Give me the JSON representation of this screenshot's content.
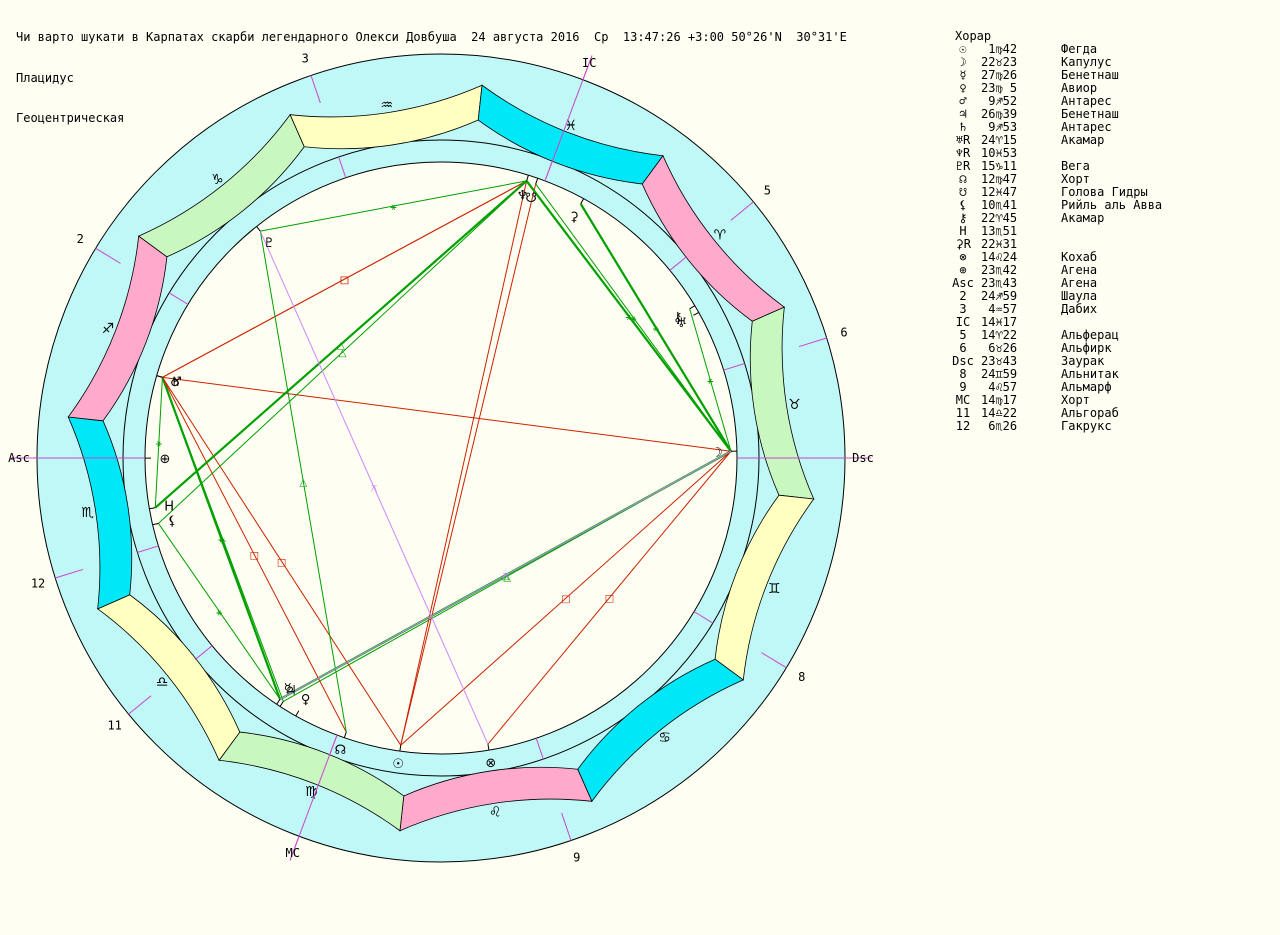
{
  "header": {
    "line1": "Чи варто шукати в Карпатах скарби легендарного Олекси Довбуша  24 августа 2016  Ср  13:47:26 +3:00 50°26'N  30°31'E",
    "line2": "Плацидус",
    "line3": "Геоцентрическая"
  },
  "table": {
    "title": "Хорар",
    "rows": [
      {
        "sym": "☉",
        "pos": " 1♍42",
        "star": "Фегда"
      },
      {
        "sym": "☽",
        "pos": "22♉23",
        "star": "Капулус"
      },
      {
        "sym": "☿",
        "pos": "27♍26",
        "star": "Бенетнаш"
      },
      {
        "sym": "♀",
        "pos": "23♍ 5",
        "star": "Авиор"
      },
      {
        "sym": "♂",
        "pos": " 9♐52",
        "star": "Антарес"
      },
      {
        "sym": "♃",
        "pos": "26♍39",
        "star": "Бенетнаш"
      },
      {
        "sym": "♄",
        "pos": " 9♐53",
        "star": "Антарес"
      },
      {
        "sym": "♅R",
        "pos": "24♈15",
        "star": "Акамар"
      },
      {
        "sym": "♆R",
        "pos": "10♓53",
        "star": ""
      },
      {
        "sym": "♇R",
        "pos": "15♑11",
        "star": "Вега"
      },
      {
        "sym": "☊",
        "pos": "12♍47",
        "star": "Хорт"
      },
      {
        "sym": "☋",
        "pos": "12♓47",
        "star": "Голова Гидры"
      },
      {
        "sym": "⚸",
        "pos": "10♏41",
        "star": "Рийль аль Авва"
      },
      {
        "sym": "⚷",
        "pos": "22♈45",
        "star": "Акамар"
      },
      {
        "sym": "H",
        "pos": "13♏51",
        "star": ""
      },
      {
        "sym": "⚳R",
        "pos": "22♓31",
        "star": ""
      },
      {
        "sym": "⊗",
        "pos": "14♌24",
        "star": "Кохаб"
      },
      {
        "sym": "⊕",
        "pos": "23♏42",
        "star": "Агена"
      },
      {
        "sym": "Asc",
        "pos": "23♏43",
        "star": "Агена"
      },
      {
        "sym": "2",
        "pos": "24♐59",
        "star": "Шаула"
      },
      {
        "sym": "3",
        "pos": " 4♒57",
        "star": "Дабих"
      },
      {
        "sym": "IC",
        "pos": "14♓17",
        "star": ""
      },
      {
        "sym": "5",
        "pos": "14♈22",
        "star": "Альферац"
      },
      {
        "sym": "6",
        "pos": " 6♉26",
        "star": "Альфирк"
      },
      {
        "sym": "Dsc",
        "pos": "23♉43",
        "star": "Заурак"
      },
      {
        "sym": "8",
        "pos": "24♊59",
        "star": "Альнитак"
      },
      {
        "sym": "9",
        "pos": " 4♌57",
        "star": "Альмарф"
      },
      {
        "sym": "MC",
        "pos": "14♍17",
        "star": "Хорт"
      },
      {
        "sym": "11",
        "pos": "14♎22",
        "star": "Альгораб"
      },
      {
        "sym": "12",
        "pos": " 6♏26",
        "star": "Гакрукс"
      }
    ]
  },
  "chart": {
    "asc_deg": 233.717,
    "colors": {
      "element_fire": "#ffaacc",
      "element_earth": "#c8f8c0",
      "element_air": "#ffffc0",
      "element_water": "#00e8f8",
      "ring_fill": "#c0f8f8",
      "background": "#fefef3",
      "axis": "#cc44cc",
      "house_line": "#cc44cc",
      "aspect_green": "#00a000",
      "aspect_red": "#cc2200",
      "aspect_violet": "#cc88ff",
      "aspect_gray": "#9999cc"
    },
    "signs": [
      {
        "glyph": "♈",
        "element": "fire"
      },
      {
        "glyph": "♉",
        "element": "earth"
      },
      {
        "glyph": "♊",
        "element": "air"
      },
      {
        "glyph": "♋",
        "element": "water"
      },
      {
        "glyph": "♌",
        "element": "fire"
      },
      {
        "glyph": "♍",
        "element": "earth"
      },
      {
        "glyph": "♎",
        "element": "air"
      },
      {
        "glyph": "♏",
        "element": "water"
      },
      {
        "glyph": "♐",
        "element": "fire"
      },
      {
        "glyph": "♑",
        "element": "earth"
      },
      {
        "glyph": "♒",
        "element": "air"
      },
      {
        "glyph": "♓",
        "element": "water"
      }
    ],
    "houses": [
      {
        "label": "Asc",
        "lon": 233.717
      },
      {
        "label": "2",
        "lon": 264.983
      },
      {
        "label": "3",
        "lon": 304.95
      },
      {
        "label": "IC",
        "lon": 344.283
      },
      {
        "label": "5",
        "lon": 14.367
      },
      {
        "label": "6",
        "lon": 36.433
      },
      {
        "label": "Dsc",
        "lon": 53.717
      },
      {
        "label": "8",
        "lon": 84.983
      },
      {
        "label": "9",
        "lon": 124.95
      },
      {
        "label": "MC",
        "lon": 164.283
      },
      {
        "label": "11",
        "lon": 194.367
      },
      {
        "label": "12",
        "lon": 216.433
      }
    ],
    "planets": [
      {
        "id": "sun",
        "glyph": "☉",
        "lon": 151.7,
        "ring": "outer"
      },
      {
        "id": "moon",
        "glyph": "☽",
        "lon": 52.383,
        "ring": "inner"
      },
      {
        "id": "mercury",
        "glyph": "☿",
        "lon": 177.433,
        "ring": "inner"
      },
      {
        "id": "venus",
        "glyph": "♀",
        "lon": 173.083,
        "ring": "inner"
      },
      {
        "id": "mars",
        "glyph": "♂",
        "lon": 249.867,
        "ring": "inner"
      },
      {
        "id": "jupiter",
        "glyph": "♃",
        "lon": 176.65,
        "ring": "inner"
      },
      {
        "id": "saturn",
        "glyph": "♄",
        "lon": 249.883,
        "ring": "inner"
      },
      {
        "id": "uranus",
        "glyph": "♅",
        "lon": 24.25,
        "ring": "inner"
      },
      {
        "id": "neptune",
        "glyph": "♆",
        "lon": 340.883,
        "ring": "inner"
      },
      {
        "id": "pluto",
        "glyph": "♇",
        "lon": 285.183,
        "ring": "inner"
      },
      {
        "id": "north-node",
        "glyph": "☊",
        "lon": 162.783,
        "ring": "outer"
      },
      {
        "id": "south-node",
        "glyph": "☋",
        "lon": 342.783,
        "ring": "inner"
      },
      {
        "id": "lilith",
        "glyph": "⚸",
        "lon": 220.683,
        "ring": "inner"
      },
      {
        "id": "chiron",
        "glyph": "⚷",
        "lon": 22.75,
        "ring": "inner"
      },
      {
        "id": "h-point",
        "glyph": "H",
        "lon": 223.85,
        "ring": "inner"
      },
      {
        "id": "vesta",
        "glyph": "⚳",
        "lon": 352.517,
        "ring": "inner"
      },
      {
        "id": "part-of-fortune",
        "glyph": "⊗",
        "lon": 134.4,
        "ring": "outer"
      },
      {
        "id": "earth",
        "glyph": "⊕",
        "lon": 233.7,
        "ring": "inner"
      }
    ],
    "aspects": [
      {
        "a": "mercury",
        "b": "moon",
        "color": "green",
        "w": 2.2,
        "sym": "△"
      },
      {
        "a": "jupiter",
        "b": "moon",
        "color": "green",
        "w": 1,
        "sym": "△"
      },
      {
        "a": "mercury",
        "b": "mars",
        "color": "green",
        "w": 2.2,
        "sym": "⚹"
      },
      {
        "a": "jupiter",
        "b": "mars",
        "color": "green",
        "w": 1,
        "sym": "⚹"
      },
      {
        "a": "mars",
        "b": "moon",
        "color": "red",
        "w": 1,
        "sym": ""
      },
      {
        "a": "mars",
        "b": "neptune",
        "color": "red",
        "w": 1,
        "sym": "□"
      },
      {
        "a": "saturn",
        "b": "neptune",
        "color": "red",
        "w": 1,
        "sym": "□"
      },
      {
        "a": "mars",
        "b": "node",
        "color": "red",
        "w": 1,
        "sym": "□"
      },
      {
        "a": "sun",
        "b": "mars",
        "color": "red",
        "w": 1,
        "sym": "□"
      },
      {
        "a": "sun",
        "b": "moon",
        "color": "red",
        "w": 1,
        "sym": "□"
      },
      {
        "a": "part-of-fortune",
        "b": "moon",
        "color": "red",
        "w": 1,
        "sym": "□"
      },
      {
        "a": "sun",
        "b": "neptune",
        "color": "red",
        "w": 1,
        "sym": ""
      },
      {
        "a": "sun",
        "b": "south-node",
        "color": "red",
        "w": 1,
        "sym": ""
      },
      {
        "a": "h-point",
        "b": "neptune",
        "color": "green",
        "w": 2.2,
        "sym": "△"
      },
      {
        "a": "lilith",
        "b": "neptune",
        "color": "green",
        "w": 1,
        "sym": "△"
      },
      {
        "a": "moon",
        "b": "neptune",
        "color": "green",
        "w": 2.2,
        "sym": "⚹"
      },
      {
        "a": "moon",
        "b": "south-node",
        "color": "green",
        "w": 1,
        "sym": "⚹"
      },
      {
        "a": "moon",
        "b": "vesta",
        "color": "green",
        "w": 2.2,
        "sym": "⚹"
      },
      {
        "a": "moon",
        "b": "chiron",
        "color": "green",
        "w": 1,
        "sym": "⚹"
      },
      {
        "a": "pluto",
        "b": "neptune",
        "color": "green",
        "w": 1,
        "sym": "⚹"
      },
      {
        "a": "pluto",
        "b": "node",
        "color": "green",
        "w": 1,
        "sym": "△"
      },
      {
        "a": "lilith",
        "b": "mercury",
        "color": "green",
        "w": 1,
        "sym": "⚹"
      },
      {
        "a": "h-point",
        "b": "mars",
        "color": "green",
        "w": 1,
        "sym": "⚹"
      },
      {
        "a": "mercury",
        "b": "moon",
        "color": "green",
        "w": 1,
        "sym": ""
      },
      {
        "a": "part-of-fortune",
        "b": "pluto",
        "color": "violet",
        "w": 1,
        "sym": "⚻"
      },
      {
        "a": "mercury",
        "b": "moon",
        "color": "violet",
        "w": 1,
        "sym": "⚻"
      }
    ]
  }
}
